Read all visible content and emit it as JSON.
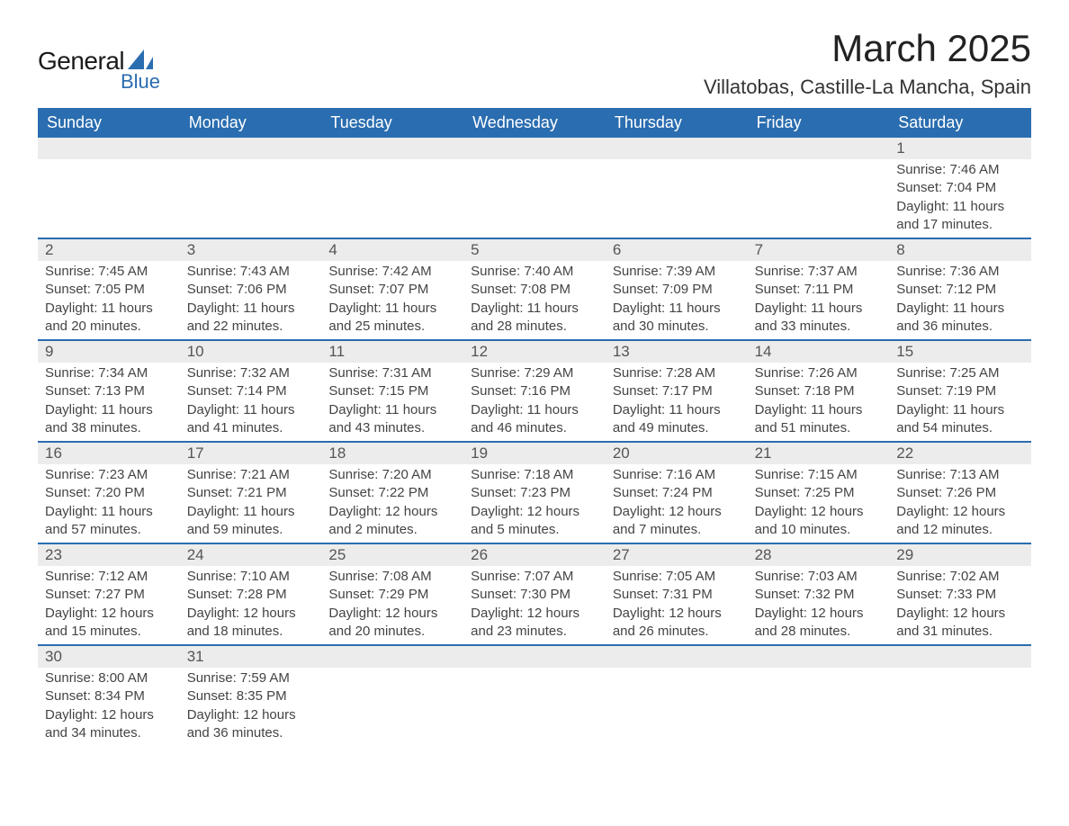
{
  "logo": {
    "text_general": "General",
    "text_blue": "Blue",
    "shape_color": "#2a6db0"
  },
  "title": "March 2025",
  "location": "Villatobas, Castille-La Mancha, Spain",
  "colors": {
    "header_bg": "#2a6db0",
    "header_text": "#ffffff",
    "daynum_bg": "#ececec",
    "row_divider": "#2a6db0",
    "body_text": "#444444"
  },
  "typography": {
    "title_fontsize_pt": 32,
    "location_fontsize_pt": 17,
    "weekday_fontsize_pt": 14,
    "daynum_fontsize_pt": 13,
    "body_fontsize_pt": 11
  },
  "weekdays": [
    "Sunday",
    "Monday",
    "Tuesday",
    "Wednesday",
    "Thursday",
    "Friday",
    "Saturday"
  ],
  "labels": {
    "sunrise": "Sunrise",
    "sunset": "Sunset",
    "daylight": "Daylight"
  },
  "calendar": {
    "type": "table",
    "columns": 7,
    "start_weekday": "Sunday",
    "first_day_column_index": 6,
    "days": [
      {
        "n": 1,
        "sunrise": "7:46 AM",
        "sunset": "7:04 PM",
        "daylight": "11 hours and 17 minutes."
      },
      {
        "n": 2,
        "sunrise": "7:45 AM",
        "sunset": "7:05 PM",
        "daylight": "11 hours and 20 minutes."
      },
      {
        "n": 3,
        "sunrise": "7:43 AM",
        "sunset": "7:06 PM",
        "daylight": "11 hours and 22 minutes."
      },
      {
        "n": 4,
        "sunrise": "7:42 AM",
        "sunset": "7:07 PM",
        "daylight": "11 hours and 25 minutes."
      },
      {
        "n": 5,
        "sunrise": "7:40 AM",
        "sunset": "7:08 PM",
        "daylight": "11 hours and 28 minutes."
      },
      {
        "n": 6,
        "sunrise": "7:39 AM",
        "sunset": "7:09 PM",
        "daylight": "11 hours and 30 minutes."
      },
      {
        "n": 7,
        "sunrise": "7:37 AM",
        "sunset": "7:11 PM",
        "daylight": "11 hours and 33 minutes."
      },
      {
        "n": 8,
        "sunrise": "7:36 AM",
        "sunset": "7:12 PM",
        "daylight": "11 hours and 36 minutes."
      },
      {
        "n": 9,
        "sunrise": "7:34 AM",
        "sunset": "7:13 PM",
        "daylight": "11 hours and 38 minutes."
      },
      {
        "n": 10,
        "sunrise": "7:32 AM",
        "sunset": "7:14 PM",
        "daylight": "11 hours and 41 minutes."
      },
      {
        "n": 11,
        "sunrise": "7:31 AM",
        "sunset": "7:15 PM",
        "daylight": "11 hours and 43 minutes."
      },
      {
        "n": 12,
        "sunrise": "7:29 AM",
        "sunset": "7:16 PM",
        "daylight": "11 hours and 46 minutes."
      },
      {
        "n": 13,
        "sunrise": "7:28 AM",
        "sunset": "7:17 PM",
        "daylight": "11 hours and 49 minutes."
      },
      {
        "n": 14,
        "sunrise": "7:26 AM",
        "sunset": "7:18 PM",
        "daylight": "11 hours and 51 minutes."
      },
      {
        "n": 15,
        "sunrise": "7:25 AM",
        "sunset": "7:19 PM",
        "daylight": "11 hours and 54 minutes."
      },
      {
        "n": 16,
        "sunrise": "7:23 AM",
        "sunset": "7:20 PM",
        "daylight": "11 hours and 57 minutes."
      },
      {
        "n": 17,
        "sunrise": "7:21 AM",
        "sunset": "7:21 PM",
        "daylight": "11 hours and 59 minutes."
      },
      {
        "n": 18,
        "sunrise": "7:20 AM",
        "sunset": "7:22 PM",
        "daylight": "12 hours and 2 minutes."
      },
      {
        "n": 19,
        "sunrise": "7:18 AM",
        "sunset": "7:23 PM",
        "daylight": "12 hours and 5 minutes."
      },
      {
        "n": 20,
        "sunrise": "7:16 AM",
        "sunset": "7:24 PM",
        "daylight": "12 hours and 7 minutes."
      },
      {
        "n": 21,
        "sunrise": "7:15 AM",
        "sunset": "7:25 PM",
        "daylight": "12 hours and 10 minutes."
      },
      {
        "n": 22,
        "sunrise": "7:13 AM",
        "sunset": "7:26 PM",
        "daylight": "12 hours and 12 minutes."
      },
      {
        "n": 23,
        "sunrise": "7:12 AM",
        "sunset": "7:27 PM",
        "daylight": "12 hours and 15 minutes."
      },
      {
        "n": 24,
        "sunrise": "7:10 AM",
        "sunset": "7:28 PM",
        "daylight": "12 hours and 18 minutes."
      },
      {
        "n": 25,
        "sunrise": "7:08 AM",
        "sunset": "7:29 PM",
        "daylight": "12 hours and 20 minutes."
      },
      {
        "n": 26,
        "sunrise": "7:07 AM",
        "sunset": "7:30 PM",
        "daylight": "12 hours and 23 minutes."
      },
      {
        "n": 27,
        "sunrise": "7:05 AM",
        "sunset": "7:31 PM",
        "daylight": "12 hours and 26 minutes."
      },
      {
        "n": 28,
        "sunrise": "7:03 AM",
        "sunset": "7:32 PM",
        "daylight": "12 hours and 28 minutes."
      },
      {
        "n": 29,
        "sunrise": "7:02 AM",
        "sunset": "7:33 PM",
        "daylight": "12 hours and 31 minutes."
      },
      {
        "n": 30,
        "sunrise": "8:00 AM",
        "sunset": "8:34 PM",
        "daylight": "12 hours and 34 minutes."
      },
      {
        "n": 31,
        "sunrise": "7:59 AM",
        "sunset": "8:35 PM",
        "daylight": "12 hours and 36 minutes."
      }
    ]
  }
}
